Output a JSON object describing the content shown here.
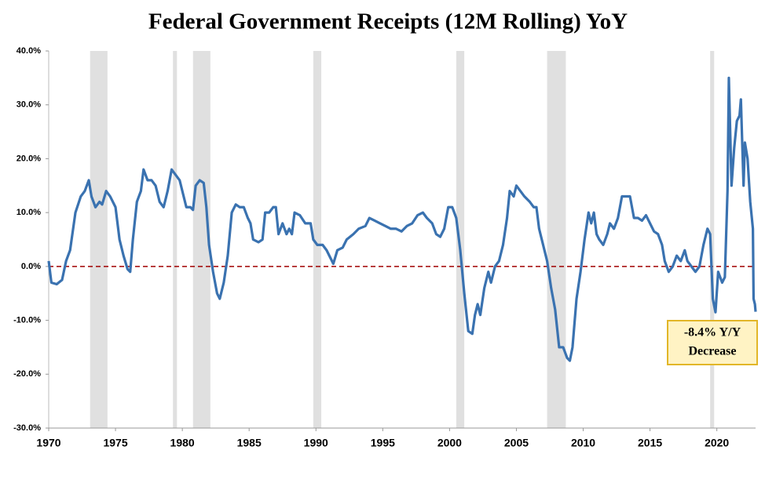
{
  "chart_data": {
    "type": "line",
    "title": "Federal Government Receipts (12M Rolling) YoY",
    "annotation": [
      "-8.4% Y/Y",
      "Decrease"
    ],
    "xlim": [
      1970,
      2022.9
    ],
    "xticks": [
      1970,
      1975,
      1980,
      1985,
      1990,
      1995,
      2000,
      2005,
      2010,
      2015,
      2020
    ],
    "ylim": [
      -30,
      40
    ],
    "yticks": [
      {
        "value": -30,
        "label": "-30.0%"
      },
      {
        "value": -20,
        "label": "-20.0%"
      },
      {
        "value": -10,
        "label": "-10.0%"
      },
      {
        "value": 0,
        "label": "0.0%"
      },
      {
        "value": 10,
        "label": "10.0%"
      },
      {
        "value": 20,
        "label": "20.0%"
      },
      {
        "value": 30,
        "label": "30.0%"
      },
      {
        "value": 40,
        "label": "40.0%"
      }
    ],
    "recessions": [
      [
        1973.1,
        1974.4
      ],
      [
        1979.3,
        1979.6
      ],
      [
        1980.8,
        1982.1
      ],
      [
        1989.8,
        1990.4
      ],
      [
        2000.5,
        2001.1
      ],
      [
        2007.3,
        2008.7
      ],
      [
        2019.5,
        2019.8
      ]
    ],
    "recession_color": "#e0e0e0",
    "zero_line_color": "#a00000",
    "x": [
      1970.0,
      1970.2,
      1970.6,
      1971.0,
      1971.3,
      1971.6,
      1972.0,
      1972.4,
      1972.7,
      1973.0,
      1973.2,
      1973.5,
      1973.8,
      1974.0,
      1974.3,
      1974.6,
      1975.0,
      1975.3,
      1975.6,
      1975.9,
      1976.1,
      1976.3,
      1976.6,
      1976.9,
      1977.1,
      1977.4,
      1977.7,
      1978.0,
      1978.3,
      1978.6,
      1978.9,
      1979.2,
      1979.5,
      1979.8,
      1980.0,
      1980.3,
      1980.6,
      1980.8,
      1981.0,
      1981.3,
      1981.6,
      1981.8,
      1982.0,
      1982.3,
      1982.6,
      1982.8,
      1983.1,
      1983.4,
      1983.7,
      1984.0,
      1984.3,
      1984.6,
      1984.9,
      1985.1,
      1985.3,
      1985.7,
      1986.0,
      1986.2,
      1986.5,
      1986.8,
      1987.0,
      1987.2,
      1987.5,
      1987.8,
      1988.0,
      1988.2,
      1988.4,
      1988.8,
      1989.2,
      1989.6,
      1989.8,
      1990.1,
      1990.5,
      1990.8,
      1991.0,
      1991.3,
      1991.6,
      1992.0,
      1992.3,
      1992.8,
      1993.2,
      1993.7,
      1994.0,
      1994.4,
      1994.8,
      1995.2,
      1995.6,
      1996.0,
      1996.4,
      1996.8,
      1997.2,
      1997.6,
      1998.0,
      1998.3,
      1998.7,
      1999.0,
      1999.3,
      1999.6,
      1999.9,
      2000.2,
      2000.5,
      2000.8,
      2001.1,
      2001.4,
      2001.7,
      2001.9,
      2002.1,
      2002.3,
      2002.6,
      2002.9,
      2003.1,
      2003.4,
      2003.7,
      2004.0,
      2004.3,
      2004.5,
      2004.8,
      2005.0,
      2005.3,
      2005.6,
      2006.0,
      2006.3,
      2006.5,
      2006.7,
      2007.0,
      2007.3,
      2007.6,
      2007.9,
      2008.2,
      2008.5,
      2008.8,
      2009.0,
      2009.2,
      2009.5,
      2009.8,
      2010.1,
      2010.4,
      2010.6,
      2010.8,
      2011.0,
      2011.2,
      2011.5,
      2011.8,
      2012.0,
      2012.3,
      2012.6,
      2012.9,
      2013.2,
      2013.5,
      2013.8,
      2014.1,
      2014.4,
      2014.7,
      2015.0,
      2015.3,
      2015.6,
      2015.9,
      2016.1,
      2016.4,
      2016.7,
      2017.0,
      2017.3,
      2017.6,
      2017.8,
      2018.1,
      2018.4,
      2018.7,
      2019.0,
      2019.3,
      2019.5,
      2019.7,
      2019.9,
      2020.1,
      2020.4,
      2020.6,
      2020.8,
      2020.9,
      2021.1,
      2021.3,
      2021.5,
      2021.7,
      2021.8,
      2022.0,
      2022.1,
      2022.3,
      2022.5,
      2022.7,
      2022.75,
      2022.85,
      2022.9
    ],
    "series": [
      {
        "name": "Federal Government Receipts YoY",
        "color": "#3a72b0",
        "values": [
          1,
          -3,
          -3.3,
          -2.5,
          1,
          3,
          10,
          13,
          14,
          16,
          13,
          11,
          12,
          11.5,
          14,
          13,
          11,
          5,
          2,
          -0.5,
          -1,
          5,
          12,
          14,
          18,
          16,
          16,
          15,
          12,
          11,
          14,
          18,
          17,
          16,
          14,
          11,
          11,
          10.5,
          15,
          16,
          15.5,
          11,
          4,
          -1,
          -5,
          -6,
          -3,
          2,
          10,
          11.5,
          11,
          11,
          9,
          8,
          5,
          4.5,
          5,
          10,
          10,
          11,
          11,
          6,
          8,
          6,
          7,
          6,
          10,
          9.5,
          8,
          8,
          5,
          4,
          4,
          3,
          2,
          0.5,
          3,
          3.5,
          5,
          6,
          7,
          7.5,
          9,
          8.5,
          8,
          7.5,
          7,
          7,
          6.5,
          7.5,
          8,
          9.5,
          10,
          9,
          8,
          6,
          5.5,
          7,
          11,
          11,
          9,
          3,
          -5,
          -12,
          -12.5,
          -9,
          -7,
          -9,
          -4,
          -1,
          -3,
          0,
          1,
          4,
          9,
          14,
          13,
          15,
          14,
          13,
          12,
          11,
          11,
          7,
          4,
          1,
          -4,
          -8,
          -15,
          -15,
          -17,
          -17.5,
          -15,
          -6,
          -1,
          5,
          10,
          8,
          10,
          6,
          5,
          4,
          6,
          8,
          7,
          9,
          13,
          13,
          13,
          9,
          9,
          8.5,
          9.5,
          8,
          6.5,
          6,
          4,
          1,
          -1,
          0,
          2,
          1,
          3,
          1,
          0,
          -1,
          0,
          4,
          7,
          6,
          -6,
          -8.5,
          -1,
          -3,
          -2,
          14,
          35,
          15,
          22,
          27,
          28,
          31,
          15,
          23,
          20,
          12,
          7,
          -6,
          -7,
          -8.4
        ]
      }
    ]
  }
}
